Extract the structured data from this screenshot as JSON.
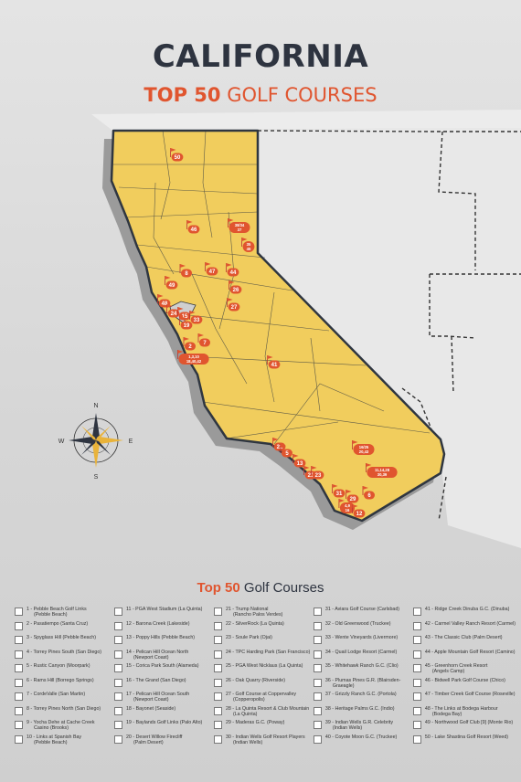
{
  "title": "CALIFORNIA",
  "subtitle_bold": "TOP 50",
  "subtitle_rest": "GOLF COURSES",
  "compass": {
    "n": "N",
    "s": "S",
    "e": "E",
    "w": "W"
  },
  "colors": {
    "state_fill": "#f1cd5d",
    "marker": "#e0552f",
    "title": "#2e3440"
  },
  "markers": [
    {
      "label": "50"
    },
    {
      "label": "46"
    },
    {
      "label": "38/34\n37"
    },
    {
      "label": "35\n45"
    },
    {
      "label": "8"
    },
    {
      "label": "47"
    },
    {
      "label": "44"
    },
    {
      "label": "49"
    },
    {
      "label": "48"
    },
    {
      "label": "26"
    },
    {
      "label": "27"
    },
    {
      "label": "24"
    },
    {
      "label": "15"
    },
    {
      "label": "33"
    },
    {
      "label": "19"
    },
    {
      "label": "2"
    },
    {
      "label": "7"
    },
    {
      "label": "1,3,10\n18,40,42"
    },
    {
      "label": "41"
    },
    {
      "label": "22"
    },
    {
      "label": "5"
    },
    {
      "label": "13"
    },
    {
      "label": "16/25\n20,43"
    },
    {
      "label": "11,14,28\n30,39"
    },
    {
      "label": "21"
    },
    {
      "label": "23"
    },
    {
      "label": "31"
    },
    {
      "label": "6"
    },
    {
      "label": "29"
    },
    {
      "label": "4,9\n16"
    },
    {
      "label": "12"
    }
  ],
  "list_title_num": "Top 50",
  "list_title_rest": "Golf Courses",
  "courses": [
    {
      "line1": "1 - Pebble Beach Golf Links",
      "line2": "(Pebble Beach)"
    },
    {
      "line1": "2 - Pasatiempo (Santa Cruz)",
      "line2": ""
    },
    {
      "line1": "3 - Spyglass Hill (Pebble Beach)",
      "line2": ""
    },
    {
      "line1": "4 - Torrey Pines South (San Diego)",
      "line2": ""
    },
    {
      "line1": "5 - Rustic Canyon (Moorpark)",
      "line2": ""
    },
    {
      "line1": "6 - Rams Hill (Borrego Springs)",
      "line2": ""
    },
    {
      "line1": "7 - CordeValle (San Martin)",
      "line2": ""
    },
    {
      "line1": "8 - Torrey Pines North (San Diego)",
      "line2": ""
    },
    {
      "line1": "9 - Yocha Dehe at Cache Creek",
      "line2": "Casino (Brooks)"
    },
    {
      "line1": "10 - Links at Spanish Bay",
      "line2": "(Pebble Beach)"
    },
    {
      "line1": "11 - PGA West Stadium (La Quinta)",
      "line2": ""
    },
    {
      "line1": "12 - Barona Creek (Lakeside)",
      "line2": ""
    },
    {
      "line1": "13 - Poppy Hills (Pebble Beach)",
      "line2": ""
    },
    {
      "line1": "14 - Pelican Hill Ocean North",
      "line2": "(Newport Coast)"
    },
    {
      "line1": "15 - Corica Park South (Alameda)",
      "line2": ""
    },
    {
      "line1": "16 - The Grand (San Diego)",
      "line2": ""
    },
    {
      "line1": "17 - Pelican Hill Ocean South",
      "line2": "(Newport Coast)"
    },
    {
      "line1": "18 - Bayonet (Seaside)",
      "line2": ""
    },
    {
      "line1": "19 - Baylands Golf Links (Palo Alto)",
      "line2": ""
    },
    {
      "line1": "20 - Desert Willow Firecliff",
      "line2": "(Palm Desert)"
    },
    {
      "line1": "21 - Trump National",
      "line2": "(Rancho Palos Verdes)"
    },
    {
      "line1": "22 - SilverRock (La Quinta)",
      "line2": ""
    },
    {
      "line1": "23 - Soule Park (Ojai)",
      "line2": ""
    },
    {
      "line1": "24 - TPC Harding Park (San Francisco)",
      "line2": ""
    },
    {
      "line1": "25 - PGA West Nicklaus (La Quinta)",
      "line2": ""
    },
    {
      "line1": "26 - Oak Quarry (Riverside)",
      "line2": ""
    },
    {
      "line1": "27 - Golf Course at Coppervalley",
      "line2": "(Copperopolis)"
    },
    {
      "line1": "28 - La Quinta Resort & Club Mountain",
      "line2": "(La Quinta)"
    },
    {
      "line1": "29 - Maderas G.C. (Poway)",
      "line2": ""
    },
    {
      "line1": "30 - Indian Wells Golf Resort Players",
      "line2": "(Indian Wells)"
    },
    {
      "line1": "31 - Aviara Golf Course (Carlsbad)",
      "line2": ""
    },
    {
      "line1": "32 - Old Greenwood (Truckee)",
      "line2": ""
    },
    {
      "line1": "33 - Wente Vineyards (Livermore)",
      "line2": ""
    },
    {
      "line1": "34 - Quail Lodge Resort (Carmel)",
      "line2": ""
    },
    {
      "line1": "35 - Whitehawk Ranch G.C. (Clio)",
      "line2": ""
    },
    {
      "line1": "36 - Plumas Pines G.R. (Blairsden-",
      "line2": "Graeagle)"
    },
    {
      "line1": "37 - Grizzly Ranch G.C. (Portola)",
      "line2": ""
    },
    {
      "line1": "38 - Heritage Palms G.C. (Indio)",
      "line2": ""
    },
    {
      "line1": "39 - Indian Wells G.R. Celebrity",
      "line2": "(Indian Wells)"
    },
    {
      "line1": "40 - Coyote Moon G.C. (Truckee)",
      "line2": ""
    },
    {
      "line1": "41 - Ridge Creek Dinuba G.C. (Dinuba)",
      "line2": ""
    },
    {
      "line1": "42 - Carmel Valley Ranch Resort (Carmel)",
      "line2": ""
    },
    {
      "line1": "43 - The Classic Club (Palm Desert)",
      "line2": ""
    },
    {
      "line1": "44 - Apple Mountain Golf Resort (Camino)",
      "line2": ""
    },
    {
      "line1": "45 - Greenhorn Creek Resort",
      "line2": "(Angels Camp)"
    },
    {
      "line1": "46 - Bidwell Park Golf Course (Chico)",
      "line2": ""
    },
    {
      "line1": "47 - Timber Creek Golf Course (Roseville)",
      "line2": ""
    },
    {
      "line1": "48 - The Links at Bodega Harbour",
      "line2": "(Bodega Bay)"
    },
    {
      "line1": "49 - Northwood Golf Club [9] (Monte Rio)",
      "line2": ""
    },
    {
      "line1": "50 - Lake Shastina Golf Resort (Weed)",
      "line2": ""
    }
  ]
}
